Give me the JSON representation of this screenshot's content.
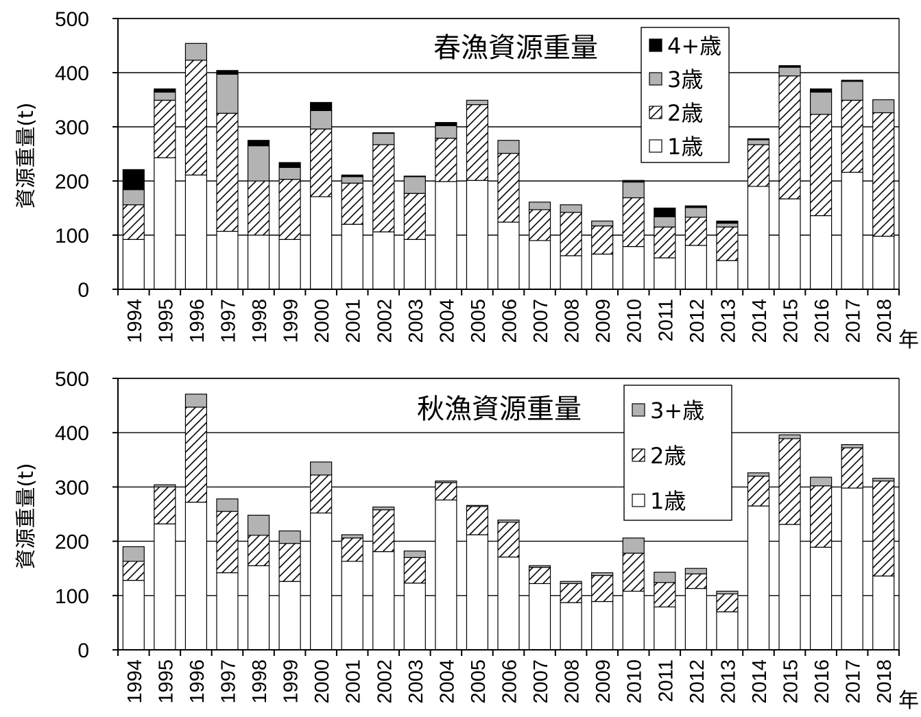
{
  "chart_data": [
    {
      "type": "bar",
      "stacked": true,
      "title": "春漁資源重量",
      "ylabel": "資源重量(t)",
      "x_unit_label": "年",
      "ylim": [
        0,
        500
      ],
      "yticks": [
        "0",
        "100",
        "200",
        "300",
        "400",
        "500"
      ],
      "grid": true,
      "legend_position": "top-right",
      "categories": [
        "1994",
        "1995",
        "1996",
        "1997",
        "1998",
        "1999",
        "2000",
        "2001",
        "2002",
        "2003",
        "2004",
        "2005",
        "2006",
        "2007",
        "2008",
        "2009",
        "2010",
        "2011",
        "2012",
        "2013",
        "2014",
        "2015",
        "2016",
        "2017",
        "2018"
      ],
      "series": [
        {
          "name": "1歳",
          "style": "white",
          "values": [
            92,
            243,
            211,
            107,
            100,
            92,
            171,
            120,
            106,
            92,
            199,
            201,
            124,
            90,
            62,
            65,
            79,
            58,
            81,
            53,
            190,
            167,
            136,
            216,
            98
          ]
        },
        {
          "name": "2歳",
          "style": "hatch",
          "values": [
            64,
            106,
            212,
            218,
            100,
            111,
            125,
            76,
            161,
            85,
            80,
            140,
            127,
            57,
            80,
            52,
            90,
            57,
            52,
            62,
            77,
            227,
            187,
            133,
            228
          ]
        },
        {
          "name": "3歳",
          "style": "gray",
          "values": [
            28,
            15,
            31,
            72,
            65,
            22,
            34,
            12,
            21,
            31,
            23,
            8,
            24,
            14,
            14,
            9,
            29,
            19,
            18,
            7,
            9,
            16,
            41,
            35,
            24
          ]
        },
        {
          "name": "4+歳",
          "style": "black",
          "values": [
            37,
            6,
            0,
            7,
            10,
            9,
            15,
            3,
            1,
            1,
            6,
            0,
            0,
            0,
            0,
            0,
            3,
            16,
            3,
            4,
            2,
            3,
            6,
            2,
            0
          ]
        }
      ],
      "legend_order": [
        "4+歳",
        "3歳",
        "2歳",
        "1歳"
      ]
    },
    {
      "type": "bar",
      "stacked": true,
      "title": "秋漁資源重量",
      "ylabel": "資源重量(t)",
      "x_unit_label": "年",
      "ylim": [
        0,
        500
      ],
      "yticks": [
        "0",
        "100",
        "200",
        "300",
        "400",
        "500"
      ],
      "grid": true,
      "legend_position": "top-right",
      "categories": [
        "1994",
        "1995",
        "1996",
        "1997",
        "1998",
        "1999",
        "2000",
        "2001",
        "2002",
        "2003",
        "2004",
        "2005",
        "2006",
        "2007",
        "2008",
        "2009",
        "2010",
        "2011",
        "2012",
        "2013",
        "2014",
        "2015",
        "2016",
        "2017",
        "2018"
      ],
      "series": [
        {
          "name": "1歳",
          "style": "white",
          "values": [
            128,
            232,
            272,
            142,
            155,
            126,
            252,
            163,
            181,
            123,
            276,
            212,
            171,
            122,
            87,
            89,
            108,
            79,
            113,
            70,
            265,
            231,
            189,
            298,
            136
          ]
        },
        {
          "name": "2歳",
          "style": "hatch",
          "values": [
            35,
            68,
            175,
            113,
            56,
            70,
            70,
            43,
            77,
            47,
            32,
            52,
            64,
            30,
            35,
            48,
            70,
            45,
            27,
            33,
            55,
            158,
            113,
            74,
            175
          ]
        },
        {
          "name": "3+歳",
          "style": "gray",
          "values": [
            27,
            4,
            24,
            23,
            37,
            23,
            24,
            6,
            5,
            12,
            3,
            2,
            4,
            3,
            4,
            5,
            28,
            19,
            10,
            5,
            6,
            7,
            16,
            6,
            5
          ]
        }
      ],
      "legend_order": [
        "3+歳",
        "2歳",
        "1歳"
      ]
    }
  ],
  "colors": {
    "axis": "#000000",
    "grid": "#000000",
    "gray_fill": "#b3b3b3",
    "black_fill": "#000000",
    "white_fill": "#ffffff"
  }
}
